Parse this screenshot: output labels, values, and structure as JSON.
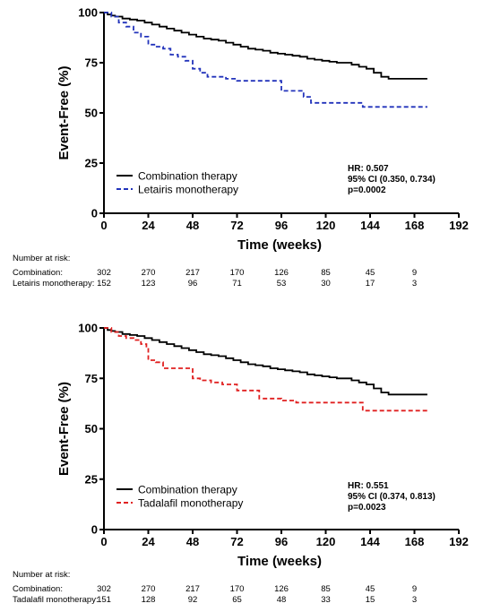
{
  "chart_data": [
    {
      "type": "line",
      "xlabel": "Time (weeks)",
      "ylabel": "Event-Free (%)",
      "xlim": [
        0,
        192
      ],
      "ylim": [
        0,
        100
      ],
      "x_ticks": [
        0,
        24,
        48,
        72,
        96,
        120,
        144,
        168,
        192
      ],
      "y_ticks": [
        0,
        25,
        50,
        75,
        100
      ],
      "grid": false,
      "legend_position": "bottom-left",
      "series": [
        {
          "name": "Combination therapy",
          "color": "#000000",
          "style": "solid",
          "x": [
            0,
            2,
            4,
            6,
            10,
            14,
            18,
            22,
            26,
            30,
            34,
            38,
            42,
            46,
            50,
            54,
            58,
            62,
            66,
            70,
            74,
            78,
            82,
            86,
            90,
            94,
            98,
            102,
            106,
            110,
            114,
            118,
            122,
            126,
            130,
            134,
            138,
            142,
            146,
            150,
            154,
            160,
            166,
            170,
            175
          ],
          "y": [
            100,
            99,
            98.5,
            98,
            97,
            96.5,
            96,
            95,
            94,
            93,
            92,
            91,
            90,
            89,
            88,
            87,
            86.5,
            86,
            85,
            84,
            83,
            82,
            81.5,
            81,
            80,
            79.5,
            79,
            78.5,
            78,
            77,
            76.5,
            76,
            75.5,
            75,
            75,
            74,
            73,
            72,
            70,
            68,
            67,
            67,
            67,
            67,
            67
          ]
        },
        {
          "name": "Letairis monotherapy",
          "color": "#2233bb",
          "style": "dashed",
          "x": [
            0,
            4,
            8,
            12,
            16,
            20,
            24,
            28,
            32,
            36,
            40,
            44,
            48,
            52,
            56,
            60,
            66,
            72,
            78,
            84,
            90,
            96,
            100,
            104,
            108,
            112,
            116,
            120,
            126,
            132,
            136,
            140,
            146,
            152,
            158,
            164,
            170,
            175
          ],
          "y": [
            100,
            98,
            95,
            93,
            90,
            88,
            84,
            83,
            82,
            79,
            78,
            76,
            72,
            70,
            68,
            68,
            67,
            66,
            66,
            66,
            66,
            61,
            61,
            61,
            58,
            55,
            55,
            55,
            55,
            55,
            55,
            53,
            53,
            53,
            53,
            53,
            53,
            53
          ]
        }
      ],
      "annotation": [
        "HR: 0.507",
        "95% CI (0.350, 0.734)",
        "p=0.0002"
      ],
      "risk_table": {
        "title": "Number at risk:",
        "times": [
          0,
          24,
          48,
          72,
          96,
          120,
          144,
          168
        ],
        "rows": [
          {
            "label": "Combination:",
            "values": [
              "302",
              "270",
              "217",
              "170",
              "126",
              "85",
              "45",
              "9"
            ]
          },
          {
            "label": "Letairis monotherapy:",
            "values": [
              "152",
              "123",
              "96",
              "71",
              "53",
              "30",
              "17",
              "3"
            ]
          }
        ]
      }
    },
    {
      "type": "line",
      "xlabel": "Time (weeks)",
      "ylabel": "Event-Free (%)",
      "xlim": [
        0,
        192
      ],
      "ylim": [
        0,
        100
      ],
      "x_ticks": [
        0,
        24,
        48,
        72,
        96,
        120,
        144,
        168,
        192
      ],
      "y_ticks": [
        0,
        25,
        50,
        75,
        100
      ],
      "grid": false,
      "legend_position": "bottom-left",
      "series": [
        {
          "name": "Combination therapy",
          "color": "#000000",
          "style": "solid",
          "x": [
            0,
            2,
            4,
            6,
            10,
            14,
            18,
            22,
            26,
            30,
            34,
            38,
            42,
            46,
            50,
            54,
            58,
            62,
            66,
            70,
            74,
            78,
            82,
            86,
            90,
            94,
            98,
            102,
            106,
            110,
            114,
            118,
            122,
            126,
            130,
            134,
            138,
            142,
            146,
            150,
            154,
            160,
            166,
            170,
            175
          ],
          "y": [
            100,
            99,
            98.5,
            98,
            97,
            96.5,
            96,
            95,
            94,
            93,
            92,
            91,
            90,
            89,
            88,
            87,
            86.5,
            86,
            85,
            84,
            83,
            82,
            81.5,
            81,
            80,
            79.5,
            79,
            78.5,
            78,
            77,
            76.5,
            76,
            75.5,
            75,
            75,
            74,
            73,
            72,
            70,
            68,
            67,
            67,
            67,
            67,
            67
          ]
        },
        {
          "name": "Tadalafil monotherapy",
          "color": "#e02020",
          "style": "dashed",
          "x": [
            0,
            4,
            8,
            12,
            16,
            20,
            23,
            24,
            28,
            32,
            36,
            40,
            44,
            48,
            52,
            58,
            64,
            72,
            78,
            84,
            90,
            96,
            100,
            104,
            112,
            120,
            128,
            136,
            140,
            146,
            152,
            158,
            164,
            170,
            175
          ],
          "y": [
            100,
            98,
            96,
            95,
            94,
            92,
            90,
            84,
            83,
            80,
            80,
            80,
            80,
            75,
            74,
            73,
            72,
            69,
            69,
            65,
            65,
            64,
            64,
            63,
            63,
            63,
            63,
            63,
            59,
            59,
            59,
            59,
            59,
            59,
            59
          ]
        }
      ],
      "annotation": [
        "HR: 0.551",
        "95% CI (0.374, 0.813)",
        "p=0.0023"
      ],
      "risk_table": {
        "title": "Number at risk:",
        "times": [
          0,
          24,
          48,
          72,
          96,
          120,
          144,
          168
        ],
        "rows": [
          {
            "label": "Combination:",
            "values": [
              "302",
              "270",
              "217",
              "170",
              "126",
              "85",
              "45",
              "9"
            ]
          },
          {
            "label": "Tadalafil monotherapy:",
            "values": [
              "151",
              "128",
              "92",
              "65",
              "48",
              "33",
              "15",
              "3"
            ]
          }
        ]
      }
    }
  ]
}
